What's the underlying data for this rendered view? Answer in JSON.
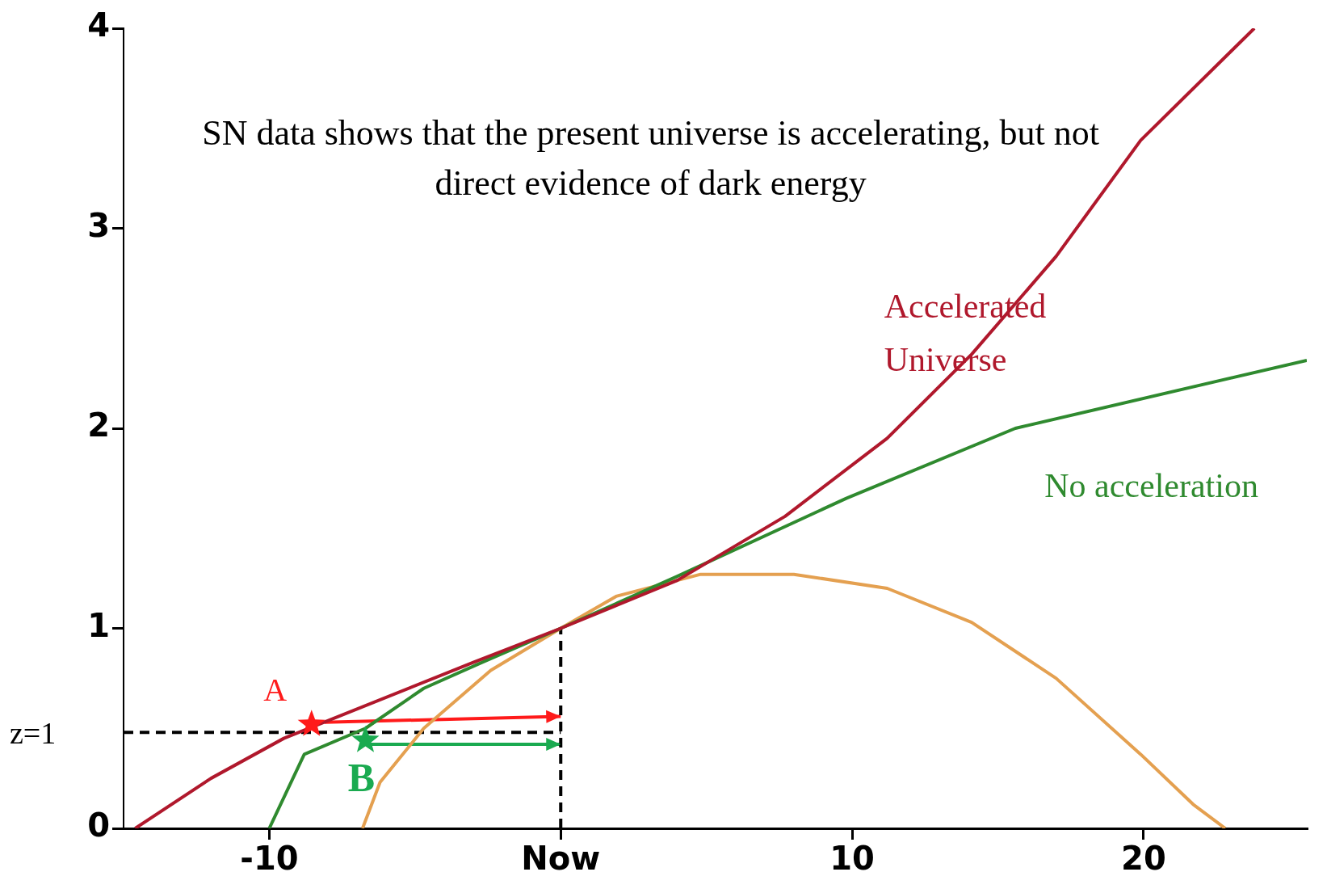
{
  "chart_data": {
    "type": "line",
    "annotations": [
      "SN data shows that the present universe is accelerating, but not direct evidence of dark energy"
    ],
    "xlim": [
      -15,
      25.6
    ],
    "ylim": [
      0,
      4
    ],
    "xticks": [
      -10,
      {
        "value": 0,
        "label": "Now"
      },
      10,
      20
    ],
    "yticks": [
      0,
      1,
      2,
      3,
      4
    ],
    "grid": false,
    "legend": false,
    "series": [
      {
        "name": "Accelerated Universe",
        "color": "#b0182c",
        "x": [
          -14.6,
          -12,
          -9.5,
          -3,
          0,
          4,
          7.7,
          11.2,
          14.1,
          17,
          19.9,
          23.8
        ],
        "values": [
          0,
          0.25,
          0.45,
          0.83,
          1,
          1.24,
          1.56,
          1.95,
          2.37,
          2.86,
          3.44,
          4
        ]
      },
      {
        "name": "No acceleration",
        "color": "#2f8a2f",
        "x": [
          -10,
          -8.8,
          -6.7,
          -4.7,
          -2.7,
          0,
          4,
          9.8,
          15.6,
          25.6
        ],
        "values": [
          0,
          0.37,
          0.5,
          0.7,
          0.83,
          1,
          1.26,
          1.65,
          2,
          2.34
        ]
      },
      {
        "color": "#e4a050",
        "x": [
          -6.8,
          -6.2,
          -4.7,
          -2.4,
          0,
          1.9,
          4.8,
          8,
          11.2,
          14.1,
          17,
          19.9,
          21.7,
          22.8
        ],
        "values": [
          0,
          0.23,
          0.5,
          0.79,
          1,
          1.16,
          1.27,
          1.27,
          1.2,
          1.03,
          0.75,
          0.37,
          0.12,
          0
        ]
      },
      {
        "name": "z=1",
        "color": "#000000",
        "line_style": "dashed",
        "x": [
          -15,
          0
        ],
        "values": [
          0.48,
          0.48
        ]
      },
      {
        "color": "#000000",
        "line_style": "dashed",
        "x": [
          0,
          0
        ],
        "values": [
          0,
          1
        ]
      },
      {
        "color": "#ff1a1a",
        "x": [
          -8.1,
          0
        ],
        "values": [
          0.53,
          0.56
        ]
      },
      {
        "color": "#1aaa50",
        "x": [
          -6.7,
          0
        ],
        "values": [
          0.42,
          0.42
        ]
      },
      {
        "name": "A",
        "type": "scatter",
        "color": "#ff1a1a",
        "marker": "star",
        "x": [
          -8.55
        ],
        "values": [
          0.52
        ]
      },
      {
        "name": "B",
        "type": "scatter",
        "color": "#1aaa50",
        "marker": "star",
        "x": [
          -6.7
        ],
        "values": [
          0.44
        ]
      }
    ]
  }
}
